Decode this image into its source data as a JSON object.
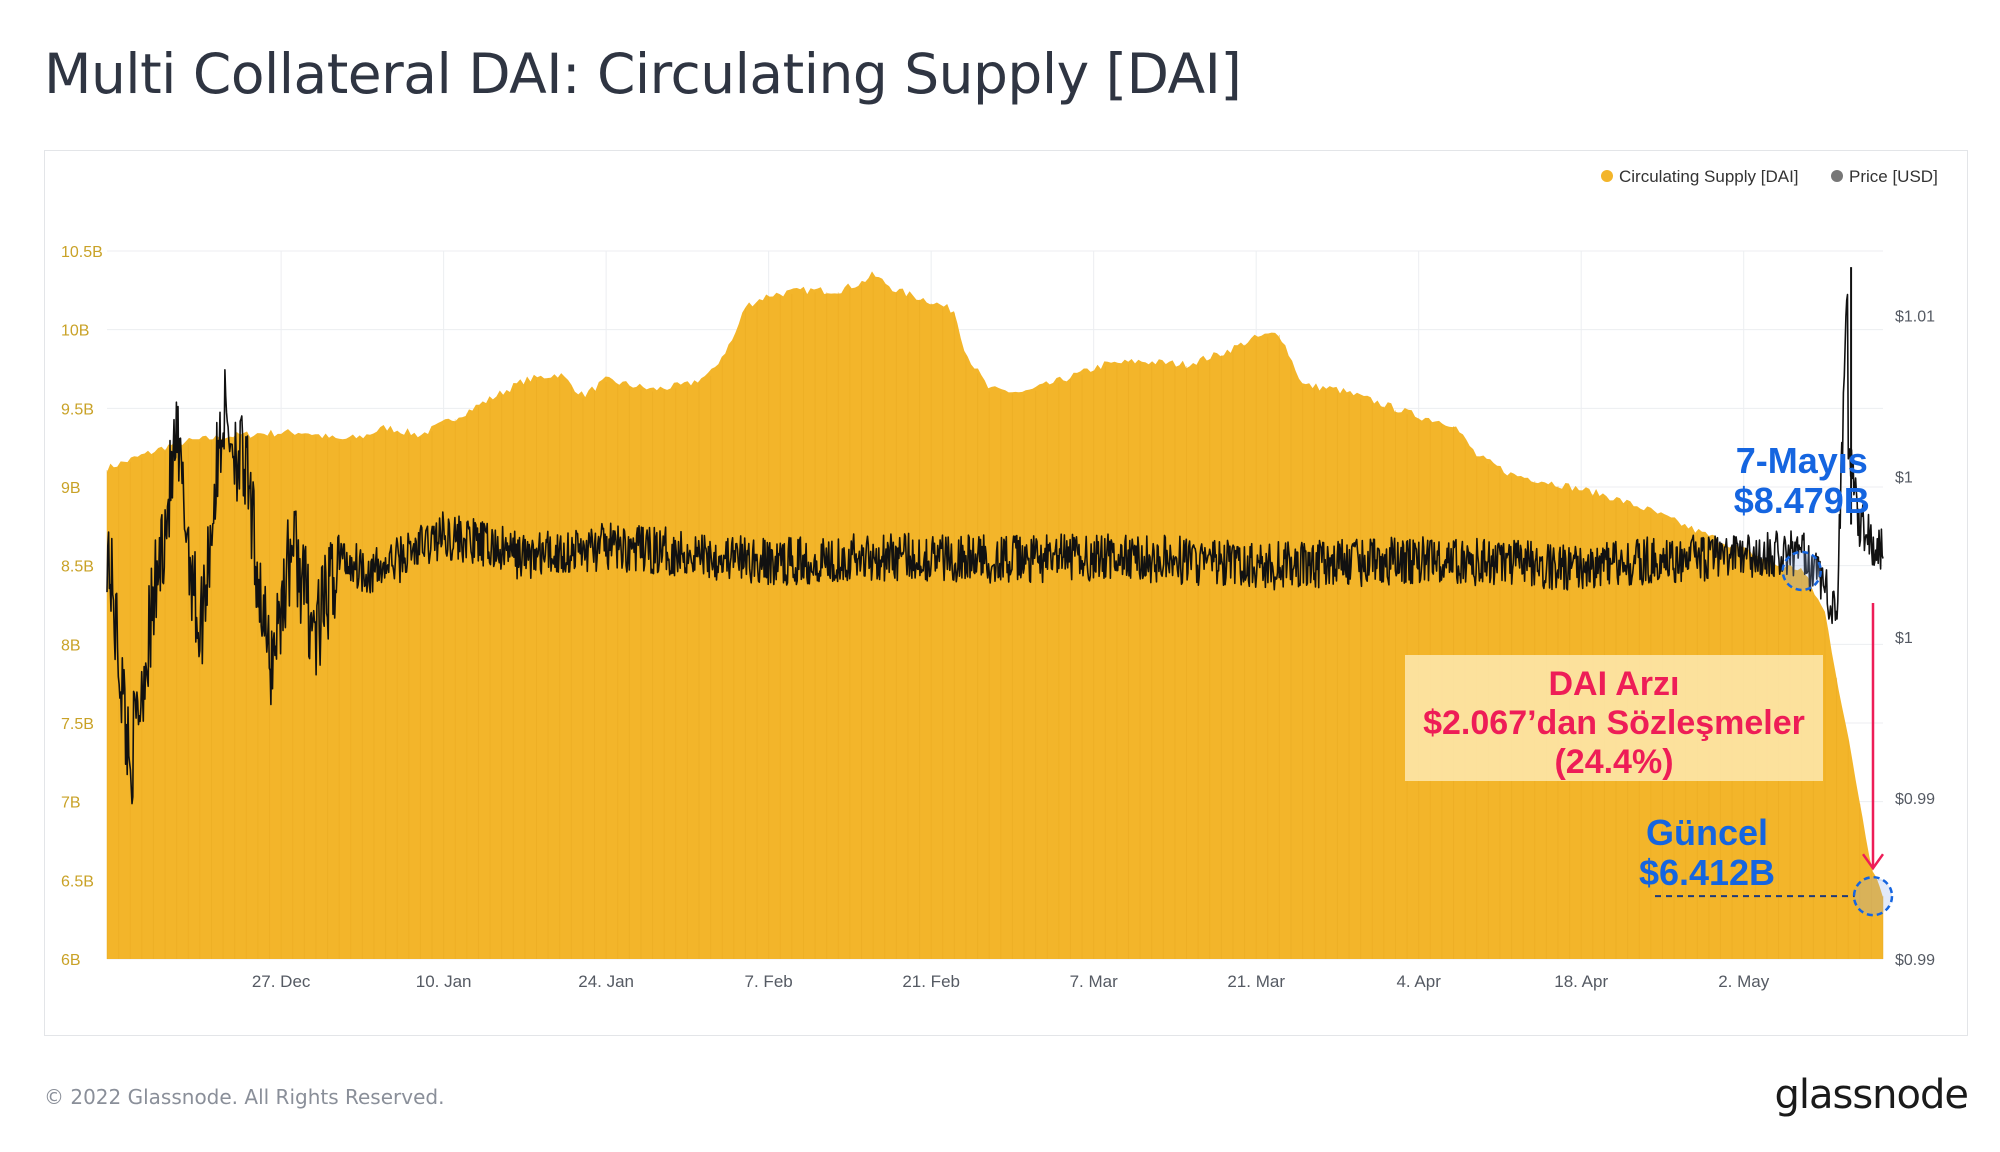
{
  "page": {
    "title": "Multi Collateral DAI: Circulating Supply [DAI]",
    "footer": "© 2022 Glassnode. All Rights Reserved.",
    "brand": "glassnode"
  },
  "colors": {
    "supply": "#f3b52a",
    "price": "#111111",
    "legend_price_dot": "#777777",
    "annotation_blue": "#1565e0",
    "annotation_red": "#ee1d57",
    "axis_text_left": "#c9a227",
    "axis_text": "#555a63",
    "grid": "#eceef1"
  },
  "chart_data": {
    "type": "area",
    "xlabel": "",
    "ylabel_left": "",
    "ylabel_right": "",
    "x_range": [
      "2021-12-12",
      "2022-05-14"
    ],
    "x_ticks": [
      "27. Dec",
      "10. Jan",
      "24. Jan",
      "7. Feb",
      "21. Feb",
      "7. Mar",
      "21. Mar",
      "4. Apr",
      "18. Apr",
      "2. May"
    ],
    "y_left": {
      "min": 6.0,
      "max": 10.5,
      "unit": "billion DAI",
      "ticks": [
        "6B",
        "6.5B",
        "7B",
        "7.5B",
        "8B",
        "8.5B",
        "9B",
        "9.5B",
        "10B",
        "10.5B"
      ]
    },
    "y_right": {
      "ticks": [
        "$0.99",
        "$0.99",
        "$1",
        "$1",
        "$1.01"
      ],
      "tick_positions": [
        0.986,
        0.991,
        0.996,
        1.001,
        1.006
      ],
      "range": [
        0.986,
        1.008
      ]
    },
    "grid": true,
    "legend_position": "top-right",
    "series": [
      {
        "name": "Circulating Supply [DAI]",
        "axis": "left",
        "x": [
          "2021-12-12",
          "2021-12-15",
          "2021-12-18",
          "2021-12-22",
          "2021-12-25",
          "2021-12-29",
          "2022-01-01",
          "2022-01-03",
          "2022-01-05",
          "2022-01-08",
          "2022-01-12",
          "2022-01-15",
          "2022-01-17",
          "2022-01-20",
          "2022-01-22",
          "2022-01-24",
          "2022-01-28",
          "2022-01-31",
          "2022-02-02",
          "2022-02-04",
          "2022-02-05",
          "2022-02-07",
          "2022-02-10",
          "2022-02-13",
          "2022-02-15",
          "2022-02-16",
          "2022-02-18",
          "2022-02-21",
          "2022-02-23",
          "2022-02-24",
          "2022-02-26",
          "2022-03-01",
          "2022-03-05",
          "2022-03-08",
          "2022-03-11",
          "2022-03-15",
          "2022-03-18",
          "2022-03-21",
          "2022-03-23",
          "2022-03-25",
          "2022-03-28",
          "2022-03-31",
          "2022-04-04",
          "2022-04-07",
          "2022-04-09",
          "2022-04-12",
          "2022-04-16",
          "2022-04-20",
          "2022-04-24",
          "2022-04-28",
          "2022-05-02",
          "2022-05-05",
          "2022-05-07",
          "2022-05-09",
          "2022-05-10",
          "2022-05-11",
          "2022-05-12",
          "2022-05-13",
          "2022-05-14"
        ],
        "values": [
          9.12,
          9.2,
          9.28,
          9.32,
          9.34,
          9.35,
          9.3,
          9.32,
          9.38,
          9.33,
          9.48,
          9.6,
          9.68,
          9.72,
          9.58,
          9.68,
          9.62,
          9.65,
          9.72,
          9.95,
          10.15,
          10.22,
          10.25,
          10.25,
          10.3,
          10.35,
          10.25,
          10.18,
          10.12,
          9.85,
          9.62,
          9.6,
          9.7,
          9.78,
          9.8,
          9.78,
          9.85,
          9.95,
          9.98,
          9.65,
          9.62,
          9.55,
          9.45,
          9.4,
          9.2,
          9.08,
          9.02,
          8.95,
          8.85,
          8.72,
          8.6,
          8.5,
          8.479,
          8.2,
          7.8,
          7.4,
          7.0,
          6.6,
          6.412
        ]
      },
      {
        "name": "Price [USD]",
        "axis": "right",
        "x": [
          "2021-12-12",
          "2021-12-14",
          "2021-12-16",
          "2021-12-18",
          "2021-12-20",
          "2021-12-22",
          "2021-12-24",
          "2021-12-26",
          "2021-12-28",
          "2021-12-30",
          "2022-01-01",
          "2022-01-04",
          "2022-01-10",
          "2022-01-17",
          "2022-01-24",
          "2022-02-01",
          "2022-02-07",
          "2022-02-14",
          "2022-02-21",
          "2022-03-01",
          "2022-03-07",
          "2022-03-14",
          "2022-03-21",
          "2022-03-28",
          "2022-04-04",
          "2022-04-11",
          "2022-04-18",
          "2022-04-25",
          "2022-05-02",
          "2022-05-07",
          "2022-05-09",
          "2022-05-10",
          "2022-05-11",
          "2022-05-11",
          "2022-05-12",
          "2022-05-13",
          "2022-05-14"
        ],
        "values": [
          0.999,
          0.992,
          0.997,
          1.002,
          0.996,
          1.003,
          1.001,
          0.995,
          0.999,
          0.996,
          0.9985,
          0.998,
          0.9992,
          0.9985,
          0.9988,
          0.9986,
          0.9983,
          0.9985,
          0.9985,
          0.9984,
          0.9985,
          0.9984,
          0.9982,
          0.9983,
          0.9984,
          0.9983,
          0.9982,
          0.9984,
          0.9985,
          0.9986,
          0.9975,
          0.9965,
          1.0075,
          1.002,
          0.9995,
          0.999,
          0.9988
        ]
      }
    ],
    "annotations": [
      {
        "id": "may7",
        "line1": "7-Mayıs",
        "line2": "$8.479B",
        "date": "2022-05-07",
        "value": 8.479
      },
      {
        "id": "supply_drop",
        "line1": "DAI Arzı",
        "line2": "$2.067’dan Sözleşmeler",
        "line3": "(24.4%)"
      },
      {
        "id": "current",
        "line1": "Güncel",
        "line2": "$6.412B",
        "date": "2022-05-14",
        "value": 6.412
      }
    ]
  }
}
